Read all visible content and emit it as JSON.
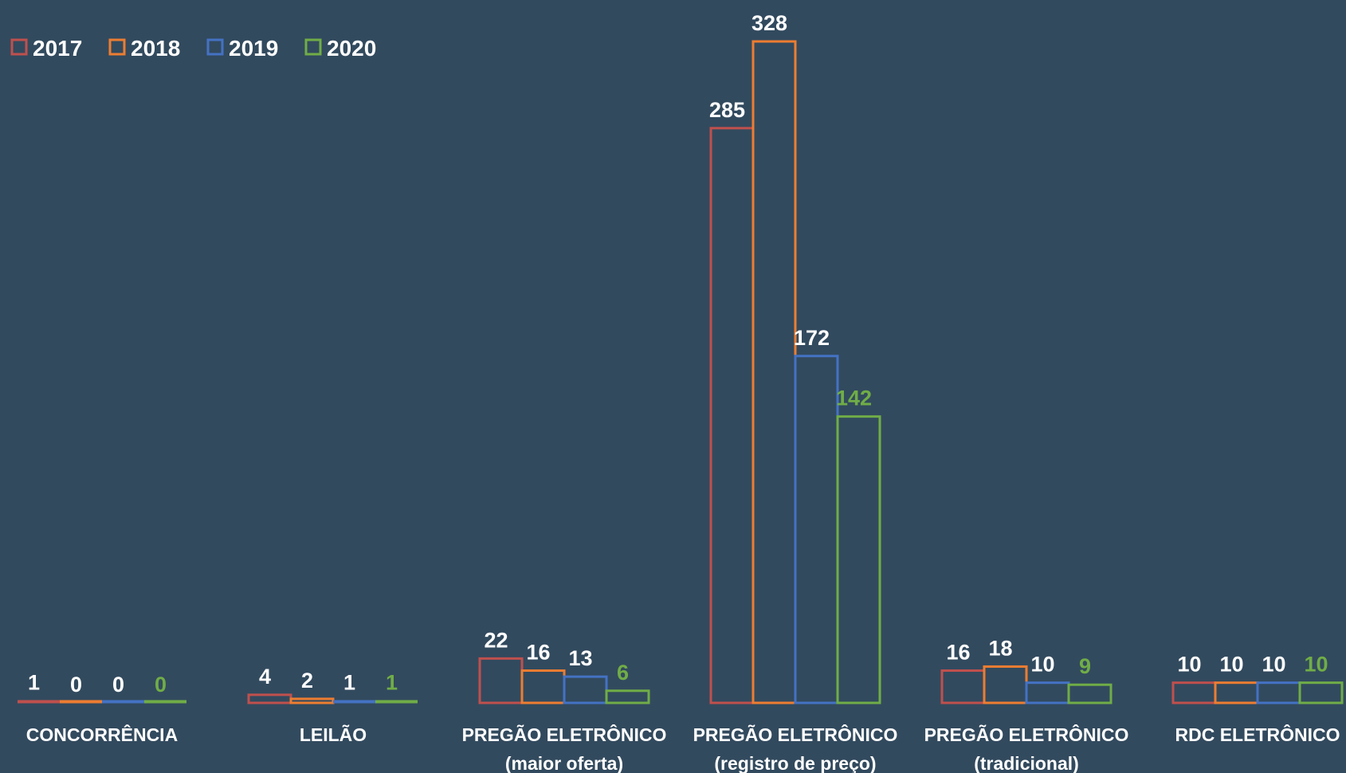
{
  "chart_data": {
    "type": "bar",
    "layout": "grouped",
    "bar_style": "outline",
    "categories": [
      "CONCORRÊNCIA",
      "LEILÃO",
      "PREGÃO ELETRÔNICO\n(maior oferta)",
      "PREGÃO ELETRÔNICO\n(registro de preço)",
      "PREGÃO ELETRÔNICO\n(tradicional)",
      "RDC ELETRÔNICO"
    ],
    "series": [
      {
        "name": "2017",
        "color": "#c0504d",
        "label_color": "#ffffff",
        "values": [
          1,
          4,
          22,
          285,
          16,
          10
        ]
      },
      {
        "name": "2018",
        "color": "#ed7d31",
        "label_color": "#ffffff",
        "values": [
          0,
          2,
          16,
          328,
          18,
          10
        ]
      },
      {
        "name": "2019",
        "color": "#4472c4",
        "label_color": "#ffffff",
        "values": [
          0,
          1,
          13,
          172,
          10,
          10
        ]
      },
      {
        "name": "2020",
        "color": "#70ad47",
        "label_color": "#70ad47",
        "values": [
          0,
          1,
          6,
          142,
          9,
          10
        ]
      }
    ],
    "ylim": [
      0,
      328
    ],
    "legend": "top-left",
    "grid": false
  }
}
